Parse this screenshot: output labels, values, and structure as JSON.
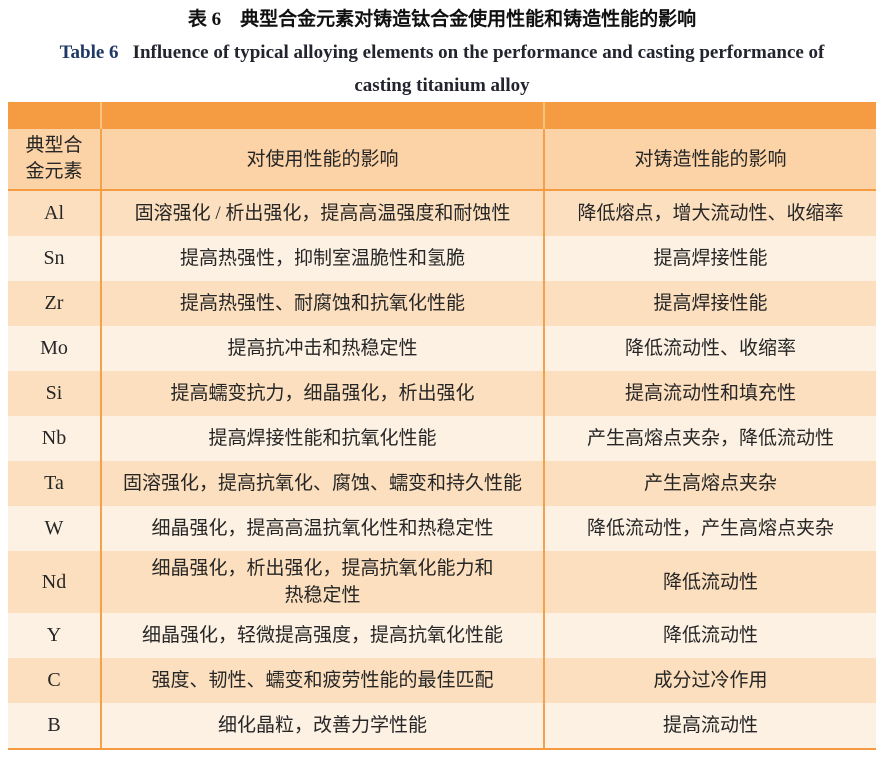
{
  "title": {
    "zh": "表 6　典型合金元素对铸造钛合金使用性能和铸造性能的影响",
    "en_label": "Table 6",
    "en_rest": "Influence of typical alloying elements on the performance and casting performance of\ncasting titanium alloy"
  },
  "colors": {
    "accent_orange": "#F59C42",
    "header_bg": "#FCD3A6",
    "row_peach": "#FCDFBE",
    "row_cream": "#FDF1E3",
    "divider_orange": "#F5A04A",
    "en_title_navy": "#1F3864",
    "body_text": "#262626"
  },
  "table": {
    "headers": {
      "element": "典型合\n金元素",
      "usage": "对使用性能的影响",
      "casting": "对铸造性能的影响"
    },
    "rows": [
      {
        "element": "Al",
        "usage": "固溶强化 / 析出强化，提高高温强度和耐蚀性",
        "casting": "降低熔点，增大流动性、收缩率"
      },
      {
        "element": "Sn",
        "usage": "提高热强性，抑制室温脆性和氢脆",
        "casting": "提高焊接性能"
      },
      {
        "element": "Zr",
        "usage": "提高热强性、耐腐蚀和抗氧化性能",
        "casting": "提高焊接性能"
      },
      {
        "element": "Mo",
        "usage": "提高抗冲击和热稳定性",
        "casting": "降低流动性、收缩率"
      },
      {
        "element": "Si",
        "usage": "提高蠕变抗力，细晶强化，析出强化",
        "casting": "提高流动性和填充性"
      },
      {
        "element": "Nb",
        "usage": "提高焊接性能和抗氧化性能",
        "casting": "产生高熔点夹杂，降低流动性"
      },
      {
        "element": "Ta",
        "usage": "固溶强化，提高抗氧化、腐蚀、蠕变和持久性能",
        "casting": "产生高熔点夹杂"
      },
      {
        "element": "W",
        "usage": "细晶强化，提高高温抗氧化性和热稳定性",
        "casting": "降低流动性，产生高熔点夹杂"
      },
      {
        "element": "Nd",
        "usage": "细晶强化，析出强化，提高抗氧化能力和\n热稳定性",
        "casting": "降低流动性"
      },
      {
        "element": "Y",
        "usage": "细晶强化，轻微提高强度，提高抗氧化性能",
        "casting": "降低流动性"
      },
      {
        "element": "C",
        "usage": "强度、韧性、蠕变和疲劳性能的最佳匹配",
        "casting": "成分过冷作用"
      },
      {
        "element": "B",
        "usage": "细化晶粒，改善力学性能",
        "casting": "提高流动性"
      }
    ]
  }
}
